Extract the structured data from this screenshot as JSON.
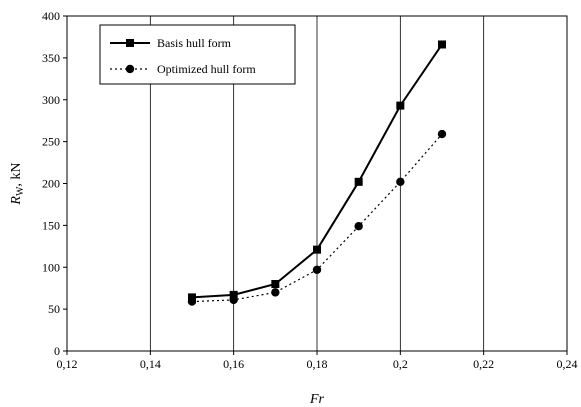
{
  "chart_data": {
    "type": "line",
    "title": "",
    "xlabel": "Fr",
    "ylabel_main": "R",
    "ylabel_sub": "W",
    "ylabel_rest": ", kN",
    "xlim": [
      0.12,
      0.24
    ],
    "ylim": [
      0,
      400
    ],
    "x_ticks": [
      0.12,
      0.14,
      0.16,
      0.18,
      0.2,
      0.22,
      0.24
    ],
    "x_tick_labels": [
      "0,12",
      "0,14",
      "0,16",
      "0,18",
      "0,2",
      "0,22",
      "0,24"
    ],
    "y_ticks": [
      0,
      50,
      100,
      150,
      200,
      250,
      300,
      350,
      400
    ],
    "y_tick_labels": [
      "0",
      "50",
      "100",
      "150",
      "200",
      "250",
      "300",
      "350",
      "400"
    ],
    "grid": "vertical",
    "legend_position": "top-left",
    "series": [
      {
        "name": "Basis hull form",
        "marker": "square",
        "line": "solid",
        "x": [
          0.15,
          0.16,
          0.17,
          0.18,
          0.19,
          0.2,
          0.21
        ],
        "y": [
          64,
          67,
          80,
          121,
          202,
          293,
          366
        ]
      },
      {
        "name": "Optimized hull form",
        "marker": "circle",
        "line": "dotted",
        "x": [
          0.15,
          0.16,
          0.17,
          0.18,
          0.19,
          0.2,
          0.21
        ],
        "y": [
          59,
          61,
          70,
          97,
          149,
          202,
          259
        ]
      }
    ]
  }
}
